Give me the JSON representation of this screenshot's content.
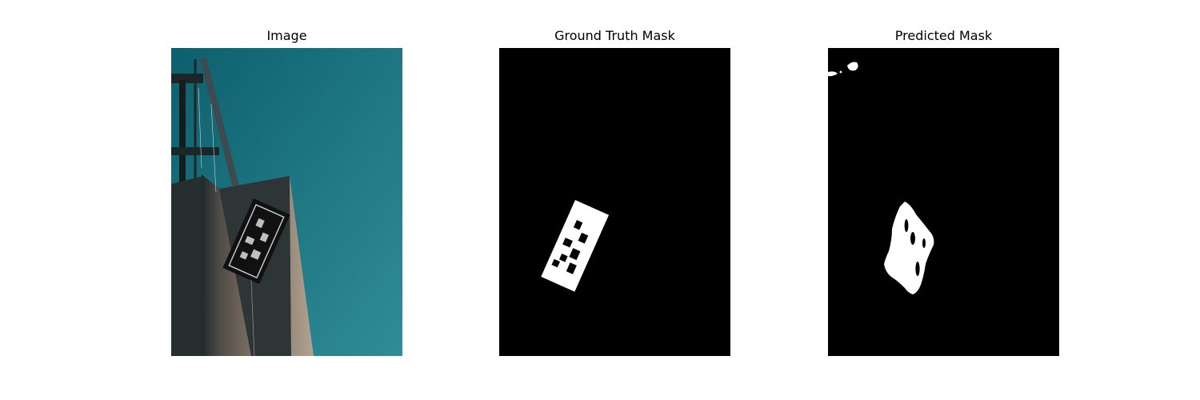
{
  "figure": {
    "panels": [
      {
        "title": "Image"
      },
      {
        "title": "Ground Truth Mask"
      },
      {
        "title": "Predicted Mask"
      }
    ]
  },
  "colors": {
    "sky_top": "#0e5f6d",
    "sky_bottom": "#2e8a96",
    "building": "#8a7b6e",
    "mask_background": "#000000",
    "mask_foreground": "#ffffff"
  }
}
